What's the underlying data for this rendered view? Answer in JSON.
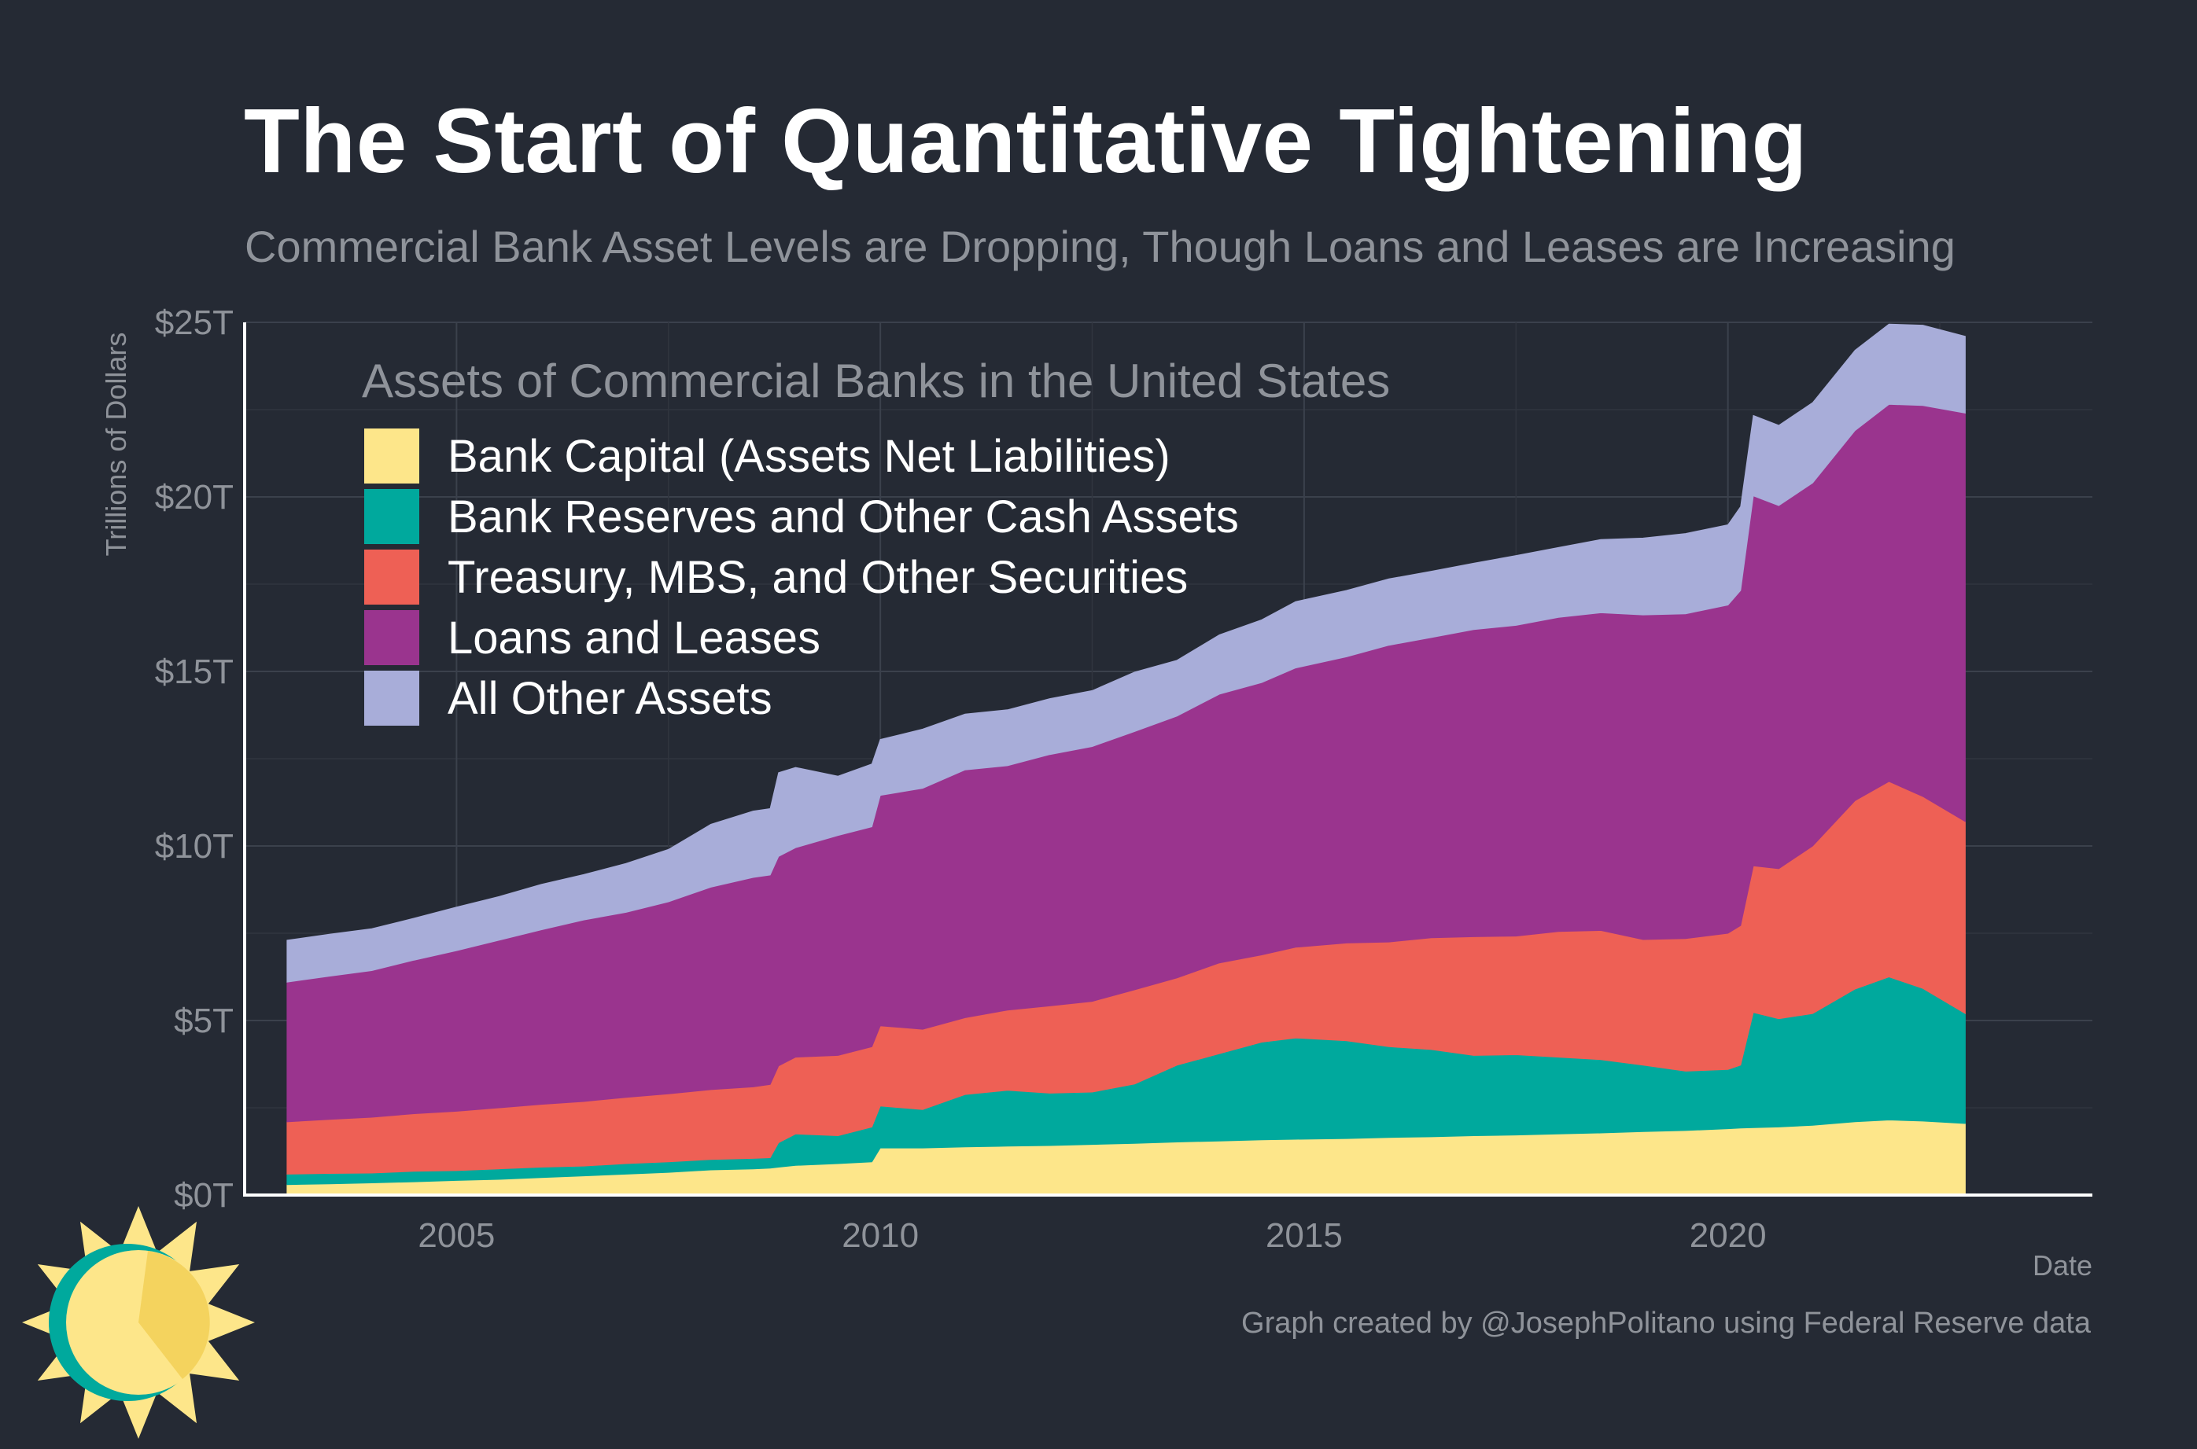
{
  "header": {
    "title": "The Start of Quantitative Tightening",
    "subtitle": "Commercial Bank Asset Levels are Dropping, Though Loans and Leases are Increasing"
  },
  "footer": {
    "credit": "Graph created by @JosephPolitano using Federal Reserve data"
  },
  "logo": {
    "icon": "sun-icon",
    "colors": [
      "#00a99d",
      "#fde68a",
      "#f4d35e"
    ]
  },
  "chart_data": {
    "type": "area",
    "stacked": true,
    "title": "The Start of Quantitative Tightening",
    "subtitle": "Commercial Bank Asset Levels are Dropping, Though Loans and Leases are Increasing",
    "xlabel": "Date",
    "ylabel": "Trillions of Dollars",
    "xlim": [
      2002.5,
      2024.3
    ],
    "ylim": [
      0,
      25
    ],
    "x_ticks": [
      2005,
      2010,
      2015,
      2020
    ],
    "x_tick_labels": [
      "2005",
      "2010",
      "2015",
      "2020"
    ],
    "y_ticks": [
      0,
      5,
      10,
      15,
      20,
      25
    ],
    "y_tick_labels": [
      "$0T",
      "$5T",
      "$10T",
      "$15T",
      "$20T",
      "$25T"
    ],
    "grid": true,
    "legend_title": "Assets of Commercial Banks in the United States",
    "legend_position": "top-left",
    "x": [
      2003.0,
      2003.5,
      2004.0,
      2004.5,
      2005.0,
      2005.5,
      2006.0,
      2006.5,
      2007.0,
      2007.5,
      2008.0,
      2008.5,
      2008.7,
      2008.8,
      2009.0,
      2009.5,
      2009.9,
      2010.0,
      2010.5,
      2011.0,
      2011.5,
      2012.0,
      2012.5,
      2013.0,
      2013.5,
      2014.0,
      2014.5,
      2014.9,
      2015.5,
      2016.0,
      2016.5,
      2017.0,
      2017.5,
      2018.0,
      2018.5,
      2019.0,
      2019.5,
      2020.0,
      2020.15,
      2020.3,
      2020.6,
      2021.0,
      2021.5,
      2021.9,
      2022.3,
      2022.8
    ],
    "series": [
      {
        "name": "Bank Capital (Assets Net Liabilities)",
        "color": "#fde68a",
        "values": [
          0.3,
          0.32,
          0.35,
          0.38,
          0.42,
          0.45,
          0.5,
          0.55,
          0.6,
          0.65,
          0.72,
          0.75,
          0.77,
          0.8,
          0.85,
          0.9,
          0.95,
          1.35,
          1.35,
          1.38,
          1.4,
          1.42,
          1.45,
          1.48,
          1.52,
          1.55,
          1.58,
          1.6,
          1.62,
          1.65,
          1.67,
          1.7,
          1.72,
          1.75,
          1.78,
          1.82,
          1.85,
          1.9,
          1.92,
          1.93,
          1.95,
          2.0,
          2.1,
          2.15,
          2.12,
          2.05
        ]
      },
      {
        "name": "Bank Reserves and Other Cash Assets",
        "color": "#00a99d",
        "values": [
          0.3,
          0.3,
          0.28,
          0.3,
          0.28,
          0.3,
          0.3,
          0.28,
          0.3,
          0.3,
          0.3,
          0.3,
          0.3,
          0.7,
          0.9,
          0.8,
          1.0,
          1.2,
          1.1,
          1.5,
          1.6,
          1.5,
          1.5,
          1.7,
          2.2,
          2.5,
          2.8,
          2.9,
          2.8,
          2.6,
          2.5,
          2.3,
          2.3,
          2.2,
          2.1,
          1.9,
          1.7,
          1.7,
          1.8,
          3.3,
          3.1,
          3.2,
          3.8,
          4.1,
          3.8,
          3.15
        ]
      },
      {
        "name": "Treasury, MBS, and Other Securities",
        "color": "#ee6055",
        "values": [
          1.5,
          1.55,
          1.6,
          1.65,
          1.7,
          1.75,
          1.8,
          1.85,
          1.9,
          1.95,
          2.0,
          2.05,
          2.1,
          2.2,
          2.2,
          2.3,
          2.3,
          2.3,
          2.3,
          2.2,
          2.3,
          2.5,
          2.6,
          2.7,
          2.5,
          2.6,
          2.5,
          2.6,
          2.8,
          3.0,
          3.2,
          3.4,
          3.4,
          3.6,
          3.7,
          3.6,
          3.8,
          3.9,
          4.0,
          4.2,
          4.3,
          4.8,
          5.4,
          5.6,
          5.5,
          5.5
        ]
      },
      {
        "name": "Loans and Leases",
        "color": "#9a348e",
        "values": [
          4.0,
          4.1,
          4.2,
          4.4,
          4.6,
          4.8,
          5.0,
          5.2,
          5.3,
          5.5,
          5.8,
          6.0,
          6.0,
          6.0,
          6.0,
          6.3,
          6.3,
          6.6,
          6.9,
          7.1,
          7.0,
          7.2,
          7.3,
          7.4,
          7.5,
          7.7,
          7.8,
          8.0,
          8.2,
          8.5,
          8.6,
          8.8,
          8.9,
          9.0,
          9.1,
          9.3,
          9.3,
          9.4,
          9.6,
          10.6,
          10.4,
          10.4,
          10.6,
          10.8,
          11.2,
          11.7
        ]
      },
      {
        "name": "All Other Assets",
        "color": "#a8add9",
        "values": [
          1.2,
          1.2,
          1.2,
          1.2,
          1.25,
          1.25,
          1.3,
          1.3,
          1.4,
          1.5,
          1.8,
          1.9,
          1.9,
          2.4,
          2.3,
          1.7,
          1.8,
          1.6,
          1.7,
          1.6,
          1.6,
          1.6,
          1.6,
          1.7,
          1.6,
          1.7,
          1.8,
          1.9,
          1.9,
          1.9,
          1.9,
          1.9,
          2.0,
          2.0,
          2.1,
          2.2,
          2.3,
          2.3,
          2.4,
          2.3,
          2.3,
          2.3,
          2.3,
          2.3,
          2.3,
          2.2
        ]
      }
    ]
  }
}
